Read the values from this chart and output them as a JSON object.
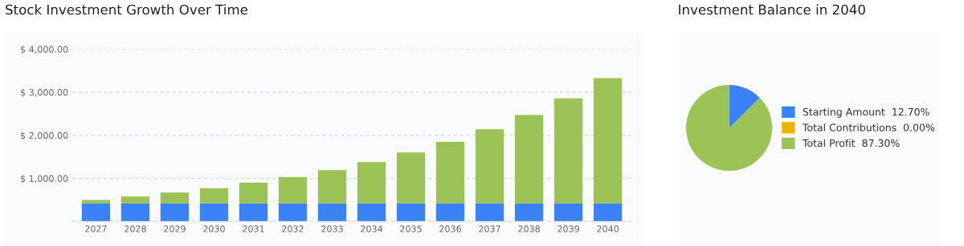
{
  "chart_data": [
    {
      "type": "bar",
      "title": "Stock Investment Growth Over Time",
      "stacked": true,
      "categories": [
        "2027",
        "2028",
        "2029",
        "2030",
        "2031",
        "2032",
        "2033",
        "2034",
        "2035",
        "2036",
        "2037",
        "2038",
        "2039",
        "2040"
      ],
      "series": [
        {
          "color": "#3b82f6",
          "values": [
            420,
            420,
            420,
            420,
            420,
            420,
            420,
            420,
            420,
            420,
            420,
            420,
            420,
            420
          ]
        },
        {
          "color": "#9bc255",
          "values": [
            80,
            160,
            250,
            350,
            480,
            610,
            770,
            960,
            1180,
            1430,
            1720,
            2050,
            2440,
            2910
          ]
        }
      ],
      "ylim": [
        0,
        4000
      ],
      "yticks": [
        {
          "value": 0,
          "label": null
        },
        {
          "value": 1000,
          "label": "$ 1,000.00"
        },
        {
          "value": 2000,
          "label": "$ 2,000.00"
        },
        {
          "value": 3000,
          "label": "$ 3,000.00"
        },
        {
          "value": 4000,
          "label": "$ 4,000.00"
        }
      ],
      "grid": "y",
      "legend": false
    },
    {
      "type": "pie",
      "title": "Investment Balance in 2040",
      "categories": [
        "Starting Amount",
        "Total Contributions",
        "Total Profit"
      ],
      "values": [
        12.7,
        0,
        87.3
      ],
      "value_labels": [
        "12.70%",
        "0.00%",
        "87.30%"
      ],
      "colors": [
        "#3b82f6",
        "#eab308",
        "#9bc255"
      ],
      "legend": "right"
    }
  ]
}
